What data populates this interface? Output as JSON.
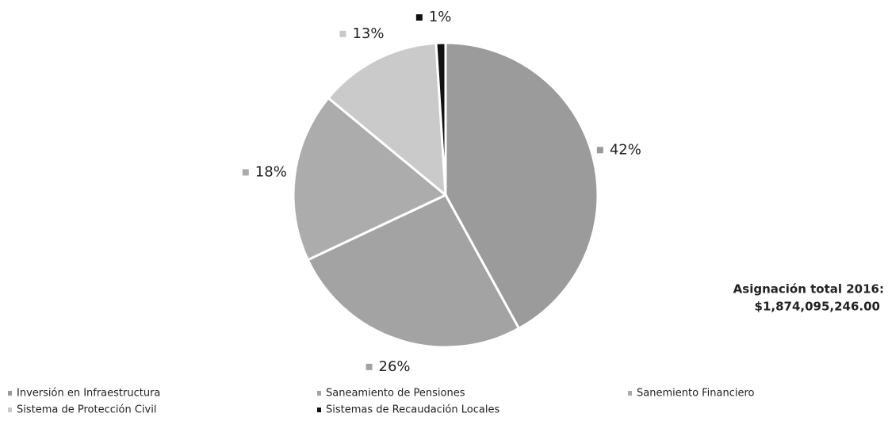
{
  "chart_data": {
    "type": "pie",
    "categories": [
      "Inversión en Infraestructura",
      "Saneamiento de Pensiones",
      "Sanemiento Financiero",
      "Sistema de Protección Civil",
      "Sistemas de Recaudación Locales"
    ],
    "values": [
      42,
      26,
      18,
      13,
      1
    ],
    "value_labels": [
      "42%",
      "26%",
      "18%",
      "13%",
      "1%"
    ],
    "colors": [
      "#9b9b9b",
      "#a3a3a3",
      "#acacac",
      "#cacaca",
      "#111111"
    ],
    "annotation": [
      "Asignación total 2016:",
      "$1,874,095,246.00"
    ]
  }
}
